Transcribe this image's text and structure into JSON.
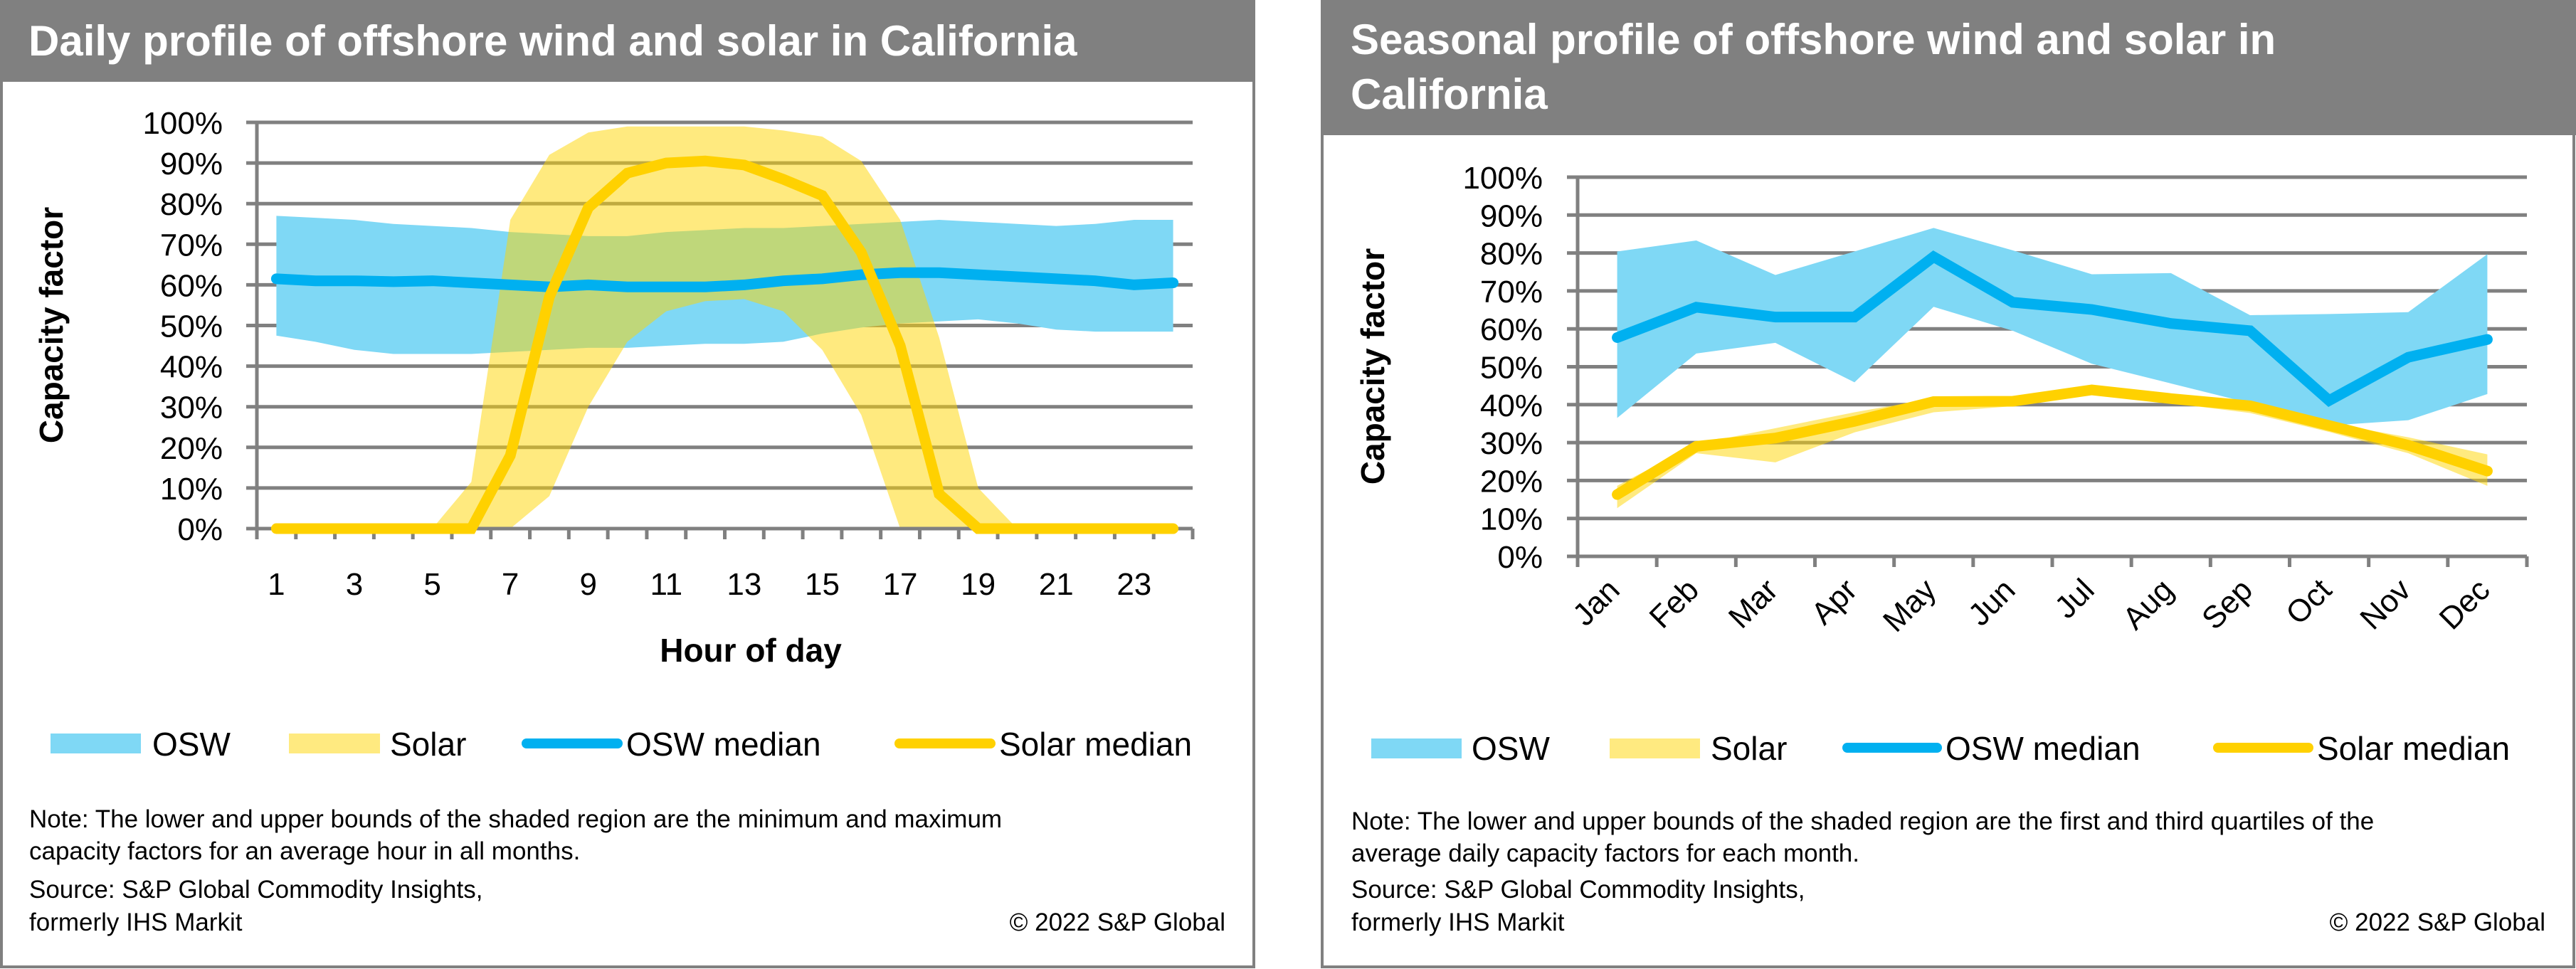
{
  "colors": {
    "header_bg": "#808080",
    "osw_band": "#7FD8F5",
    "solar_band": "#FFD600",
    "osw_line": "#00B0F0",
    "solar_line": "#FFD100",
    "grid": "#808080"
  },
  "chart_data": [
    {
      "type": "area",
      "title": "Daily profile of offshore wind and solar in California",
      "xlabel": "Hour of day",
      "ylabel": "Capacity factor",
      "ylim": [
        0,
        100
      ],
      "yticks": [
        "0%",
        "10%",
        "20%",
        "30%",
        "40%",
        "50%",
        "60%",
        "70%",
        "80%",
        "90%",
        "100%"
      ],
      "x": [
        1,
        2,
        3,
        4,
        5,
        6,
        7,
        8,
        9,
        10,
        11,
        12,
        13,
        14,
        15,
        16,
        17,
        18,
        19,
        20,
        21,
        22,
        23,
        24
      ],
      "xtick_labels": [
        "1",
        "3",
        "5",
        "7",
        "9",
        "11",
        "13",
        "15",
        "17",
        "19",
        "21",
        "23"
      ],
      "grid": true,
      "legend_position": "bottom",
      "legend": [
        "OSW",
        "Solar",
        "OSW median",
        "Solar median"
      ],
      "series": [
        {
          "name": "OSW",
          "kind": "band",
          "lower": [
            47.5,
            46,
            44,
            43,
            43,
            43,
            43.5,
            44,
            44.5,
            44.5,
            45,
            45.5,
            45.5,
            46,
            48,
            49.5,
            50.5,
            51,
            51.5,
            50.5,
            49,
            48.5,
            48.5,
            48.5
          ],
          "upper": [
            77,
            76.5,
            76,
            75,
            74.5,
            74,
            73,
            72.5,
            72,
            72,
            73,
            73.5,
            74,
            74,
            74.5,
            75,
            75.5,
            76,
            75.5,
            75,
            74.5,
            75,
            76,
            76
          ]
        },
        {
          "name": "Solar",
          "kind": "band",
          "lower": [
            0,
            0,
            0,
            0,
            0,
            0,
            0,
            8,
            30,
            46,
            53.5,
            56,
            56.5,
            53.5,
            44,
            28,
            0,
            0,
            0,
            0,
            0,
            0,
            0,
            0
          ],
          "upper": [
            0,
            0,
            0,
            0,
            0,
            11.5,
            76,
            92,
            97.5,
            99,
            99,
            99,
            99,
            98,
            96.5,
            90.5,
            76,
            47,
            10,
            0,
            0,
            0,
            0,
            0
          ]
        },
        {
          "name": "OSW median",
          "kind": "line",
          "values": [
            61.5,
            61,
            61,
            60.8,
            61,
            60.5,
            60,
            59.5,
            60,
            59.5,
            59.5,
            59.5,
            60,
            61,
            61.5,
            62.5,
            63,
            63,
            62.5,
            62,
            61.5,
            61,
            60,
            60.5
          ]
        },
        {
          "name": "Solar median",
          "kind": "line",
          "values": [
            0,
            0,
            0,
            0,
            0,
            0,
            18,
            57,
            79,
            87.5,
            90,
            90.5,
            89.5,
            86,
            82,
            68,
            45,
            8.5,
            0,
            0,
            0,
            0,
            0,
            0
          ]
        }
      ],
      "note": "Note: The lower and upper bounds of the shaded region are the minimum and maximum capacity factors for an average hour in all months.",
      "note_lines": [
        "Note: The lower and upper bounds of the shaded region are the minimum and maximum",
        "capacity factors for an average hour in all months."
      ],
      "source_lines": [
        "Source: S&P Global Commodity Insights,",
        "formerly IHS Markit"
      ],
      "copyright": "© 2022 S&P Global"
    },
    {
      "type": "area",
      "title": "Seasonal profile of offshore wind and solar in California",
      "title_lines": [
        "Seasonal profile of offshore wind and solar in",
        "California"
      ],
      "xlabel": "",
      "ylabel": "Capacity factor",
      "ylim": [
        0,
        100
      ],
      "yticks": [
        "0%",
        "10%",
        "20%",
        "30%",
        "40%",
        "50%",
        "60%",
        "70%",
        "80%",
        "90%",
        "100%"
      ],
      "categories": [
        "Jan",
        "Feb",
        "Mar",
        "Apr",
        "May",
        "Jun",
        "Jul",
        "Aug",
        "Sep",
        "Oct",
        "Nov",
        "Dec"
      ],
      "grid": true,
      "legend_position": "bottom",
      "legend": [
        "OSW",
        "Solar",
        "OSW median",
        "Solar median"
      ],
      "series": [
        {
          "name": "OSW",
          "kind": "band",
          "lower": [
            36.5,
            53.5,
            56.3,
            45.9,
            65.8,
            59.5,
            50.8,
            45.6,
            40.4,
            34.5,
            35.9,
            42.8
          ],
          "upper": [
            80.4,
            83.3,
            74.2,
            80.4,
            86.6,
            80.7,
            74.4,
            74.7,
            63.6,
            63.9,
            64.4,
            79.7
          ]
        },
        {
          "name": "Solar",
          "kind": "band",
          "lower": [
            12.7,
            27.2,
            24.8,
            32.7,
            38,
            39.6,
            42.8,
            40.4,
            37.8,
            32.8,
            27.2,
            18.6
          ],
          "upper": [
            18.6,
            29.6,
            33.8,
            38,
            41.7,
            41.7,
            44.8,
            42.5,
            40.4,
            35.2,
            31.4,
            26.9
          ]
        },
        {
          "name": "OSW median",
          "kind": "line",
          "values": [
            57.7,
            65.7,
            63.1,
            63.1,
            79,
            67,
            65.1,
            61.4,
            59.5,
            41.1,
            52.5,
            57.2
          ]
        },
        {
          "name": "Solar median",
          "kind": "line",
          "values": [
            16.3,
            29,
            31.2,
            35.6,
            40.8,
            40.9,
            43.9,
            41.6,
            39.7,
            34.5,
            29.3,
            22.5
          ]
        }
      ],
      "note": "Note: The lower and upper bounds of the shaded region are the first and third quartiles of the average daily capacity factors for each month.",
      "note_lines": [
        "Note: The lower and upper bounds of the shaded region are the first and third quartiles of the",
        "average daily capacity factors for each month."
      ],
      "source_lines": [
        "Source: S&P Global Commodity Insights,",
        "formerly IHS Markit"
      ],
      "copyright": "© 2022 S&P Global"
    }
  ]
}
